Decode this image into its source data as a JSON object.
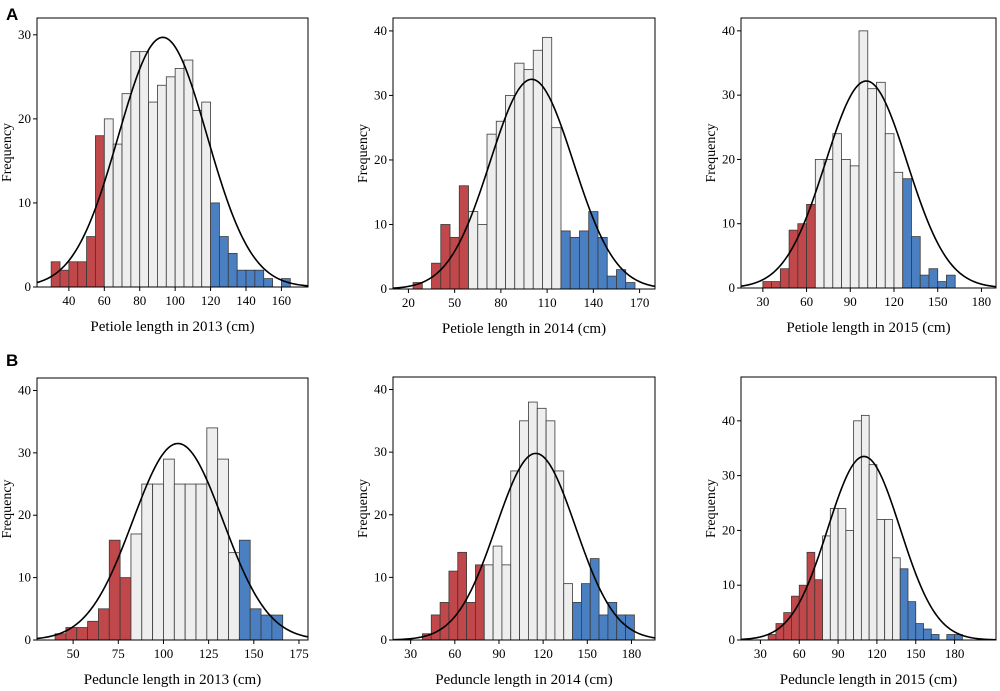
{
  "panels": [
    "A",
    "B"
  ],
  "colors": {
    "low": "#c0474a",
    "mid": "#eeeeee",
    "high": "#4a7fc1"
  },
  "chart_data": [
    {
      "type": "bar",
      "title": "",
      "xlabel": "Petiole length in 2013 (cm)",
      "ylabel": "Frequency",
      "xlim": [
        22,
        175
      ],
      "ylim": [
        0,
        32
      ],
      "xticks": [
        40,
        60,
        80,
        100,
        120,
        140,
        160
      ],
      "yticks": [
        0,
        10,
        20,
        30
      ],
      "bin_width": 5,
      "bins": [
        {
          "x": 30,
          "value": 3,
          "group": "low"
        },
        {
          "x": 35,
          "value": 2,
          "group": "low"
        },
        {
          "x": 40,
          "value": 3,
          "group": "low"
        },
        {
          "x": 45,
          "value": 3,
          "group": "low"
        },
        {
          "x": 50,
          "value": 6,
          "group": "low"
        },
        {
          "x": 55,
          "value": 18,
          "group": "low"
        },
        {
          "x": 60,
          "value": 20,
          "group": "mid"
        },
        {
          "x": 65,
          "value": 17,
          "group": "mid"
        },
        {
          "x": 70,
          "value": 23,
          "group": "mid"
        },
        {
          "x": 75,
          "value": 28,
          "group": "mid"
        },
        {
          "x": 80,
          "value": 28,
          "group": "mid"
        },
        {
          "x": 85,
          "value": 22,
          "group": "mid"
        },
        {
          "x": 90,
          "value": 24,
          "group": "mid"
        },
        {
          "x": 95,
          "value": 25,
          "group": "mid"
        },
        {
          "x": 100,
          "value": 26,
          "group": "mid"
        },
        {
          "x": 105,
          "value": 27,
          "group": "mid"
        },
        {
          "x": 110,
          "value": 21,
          "group": "mid"
        },
        {
          "x": 115,
          "value": 22,
          "group": "mid"
        },
        {
          "x": 120,
          "value": 10,
          "group": "high"
        },
        {
          "x": 125,
          "value": 6,
          "group": "high"
        },
        {
          "x": 130,
          "value": 4,
          "group": "high"
        },
        {
          "x": 135,
          "value": 2,
          "group": "high"
        },
        {
          "x": 140,
          "value": 2,
          "group": "high"
        },
        {
          "x": 145,
          "value": 2,
          "group": "high"
        },
        {
          "x": 150,
          "value": 1,
          "group": "high"
        },
        {
          "x": 155,
          "value": 0,
          "group": "high"
        },
        {
          "x": 160,
          "value": 1,
          "group": "high"
        }
      ],
      "normal_curve": {
        "mean": 93,
        "sd": 25,
        "peak": 29.7
      }
    },
    {
      "type": "bar",
      "title": "",
      "xlabel": "Petiole length in 2014 (cm)",
      "ylabel": "Frequency",
      "xlim": [
        10,
        180
      ],
      "ylim": [
        0,
        42
      ],
      "xticks": [
        20,
        50,
        80,
        110,
        140,
        170
      ],
      "yticks": [
        0,
        10,
        20,
        30,
        40
      ],
      "bin_width": 6,
      "bins": [
        {
          "x": 23,
          "value": 1,
          "group": "low"
        },
        {
          "x": 29,
          "value": 0,
          "group": "low"
        },
        {
          "x": 35,
          "value": 4,
          "group": "low"
        },
        {
          "x": 41,
          "value": 10,
          "group": "low"
        },
        {
          "x": 47,
          "value": 8,
          "group": "low"
        },
        {
          "x": 53,
          "value": 16,
          "group": "low"
        },
        {
          "x": 59,
          "value": 12,
          "group": "mid"
        },
        {
          "x": 65,
          "value": 10,
          "group": "mid"
        },
        {
          "x": 71,
          "value": 24,
          "group": "mid"
        },
        {
          "x": 77,
          "value": 26,
          "group": "mid"
        },
        {
          "x": 83,
          "value": 30,
          "group": "mid"
        },
        {
          "x": 89,
          "value": 35,
          "group": "mid"
        },
        {
          "x": 95,
          "value": 34,
          "group": "mid"
        },
        {
          "x": 101,
          "value": 37,
          "group": "mid"
        },
        {
          "x": 107,
          "value": 39,
          "group": "mid"
        },
        {
          "x": 113,
          "value": 25,
          "group": "mid"
        },
        {
          "x": 119,
          "value": 9,
          "group": "high"
        },
        {
          "x": 125,
          "value": 8,
          "group": "high"
        },
        {
          "x": 131,
          "value": 9,
          "group": "high"
        },
        {
          "x": 137,
          "value": 12,
          "group": "high"
        },
        {
          "x": 143,
          "value": 8,
          "group": "high"
        },
        {
          "x": 149,
          "value": 2,
          "group": "high"
        },
        {
          "x": 155,
          "value": 3,
          "group": "high"
        },
        {
          "x": 161,
          "value": 1,
          "group": "high"
        }
      ],
      "normal_curve": {
        "mean": 100,
        "sd": 27,
        "peak": 32.5
      }
    },
    {
      "type": "bar",
      "title": "",
      "xlabel": "Petiole length in 2015 (cm)",
      "ylabel": "Frequency",
      "xlim": [
        15,
        190
      ],
      "ylim": [
        0,
        42
      ],
      "xticks": [
        30,
        60,
        90,
        120,
        150,
        180
      ],
      "yticks": [
        0,
        10,
        20,
        30,
        40
      ],
      "bin_width": 6,
      "bins": [
        {
          "x": 30,
          "value": 1,
          "group": "low"
        },
        {
          "x": 36,
          "value": 1,
          "group": "low"
        },
        {
          "x": 42,
          "value": 3,
          "group": "low"
        },
        {
          "x": 48,
          "value": 9,
          "group": "low"
        },
        {
          "x": 54,
          "value": 10,
          "group": "low"
        },
        {
          "x": 60,
          "value": 13,
          "group": "low"
        },
        {
          "x": 66,
          "value": 20,
          "group": "mid"
        },
        {
          "x": 72,
          "value": 20,
          "group": "mid"
        },
        {
          "x": 78,
          "value": 24,
          "group": "mid"
        },
        {
          "x": 84,
          "value": 20,
          "group": "mid"
        },
        {
          "x": 90,
          "value": 19,
          "group": "mid"
        },
        {
          "x": 96,
          "value": 40,
          "group": "mid"
        },
        {
          "x": 102,
          "value": 31,
          "group": "mid"
        },
        {
          "x": 108,
          "value": 32,
          "group": "mid"
        },
        {
          "x": 114,
          "value": 24,
          "group": "mid"
        },
        {
          "x": 120,
          "value": 18,
          "group": "mid"
        },
        {
          "x": 126,
          "value": 17,
          "group": "high"
        },
        {
          "x": 132,
          "value": 8,
          "group": "high"
        },
        {
          "x": 138,
          "value": 2,
          "group": "high"
        },
        {
          "x": 144,
          "value": 3,
          "group": "high"
        },
        {
          "x": 150,
          "value": 1,
          "group": "high"
        },
        {
          "x": 156,
          "value": 2,
          "group": "high"
        }
      ],
      "normal_curve": {
        "mean": 101,
        "sd": 28,
        "peak": 32.2
      }
    },
    {
      "type": "bar",
      "title": "",
      "xlabel": "Peduncle length in 2013 (cm)",
      "ylabel": "Frequency",
      "xlim": [
        30,
        180
      ],
      "ylim": [
        0,
        42
      ],
      "xticks": [
        50,
        75,
        100,
        125,
        150,
        175
      ],
      "yticks": [
        0,
        10,
        20,
        30,
        40
      ],
      "bin_width": 6,
      "bins": [
        {
          "x": 40,
          "value": 1,
          "group": "low"
        },
        {
          "x": 46,
          "value": 2,
          "group": "low"
        },
        {
          "x": 52,
          "value": 2,
          "group": "low"
        },
        {
          "x": 58,
          "value": 3,
          "group": "low"
        },
        {
          "x": 64,
          "value": 5,
          "group": "low"
        },
        {
          "x": 70,
          "value": 16,
          "group": "low"
        },
        {
          "x": 76,
          "value": 10,
          "group": "low"
        },
        {
          "x": 82,
          "value": 17,
          "group": "mid"
        },
        {
          "x": 88,
          "value": 25,
          "group": "mid"
        },
        {
          "x": 94,
          "value": 25,
          "group": "mid"
        },
        {
          "x": 100,
          "value": 29,
          "group": "mid"
        },
        {
          "x": 106,
          "value": 25,
          "group": "mid"
        },
        {
          "x": 112,
          "value": 25,
          "group": "mid"
        },
        {
          "x": 118,
          "value": 25,
          "group": "mid"
        },
        {
          "x": 124,
          "value": 34,
          "group": "mid"
        },
        {
          "x": 130,
          "value": 29,
          "group": "mid"
        },
        {
          "x": 136,
          "value": 14,
          "group": "mid"
        },
        {
          "x": 142,
          "value": 16,
          "group": "high"
        },
        {
          "x": 148,
          "value": 5,
          "group": "high"
        },
        {
          "x": 154,
          "value": 4,
          "group": "high"
        },
        {
          "x": 160,
          "value": 4,
          "group": "high"
        }
      ],
      "normal_curve": {
        "mean": 108,
        "sd": 25,
        "peak": 31.5
      }
    },
    {
      "type": "bar",
      "title": "",
      "xlabel": "Peduncle length in 2014 (cm)",
      "ylabel": "Frequency",
      "xlim": [
        18,
        196
      ],
      "ylim": [
        0,
        42
      ],
      "xticks": [
        30,
        60,
        90,
        120,
        150,
        180
      ],
      "yticks": [
        0,
        10,
        20,
        30,
        40
      ],
      "bin_width": 6,
      "bins": [
        {
          "x": 38,
          "value": 1,
          "group": "low"
        },
        {
          "x": 44,
          "value": 4,
          "group": "low"
        },
        {
          "x": 50,
          "value": 6,
          "group": "low"
        },
        {
          "x": 56,
          "value": 11,
          "group": "low"
        },
        {
          "x": 62,
          "value": 14,
          "group": "low"
        },
        {
          "x": 68,
          "value": 6,
          "group": "low"
        },
        {
          "x": 74,
          "value": 12,
          "group": "low"
        },
        {
          "x": 80,
          "value": 12,
          "group": "mid"
        },
        {
          "x": 86,
          "value": 15,
          "group": "mid"
        },
        {
          "x": 92,
          "value": 12,
          "group": "mid"
        },
        {
          "x": 98,
          "value": 27,
          "group": "mid"
        },
        {
          "x": 104,
          "value": 35,
          "group": "mid"
        },
        {
          "x": 110,
          "value": 38,
          "group": "mid"
        },
        {
          "x": 116,
          "value": 37,
          "group": "mid"
        },
        {
          "x": 122,
          "value": 35,
          "group": "mid"
        },
        {
          "x": 128,
          "value": 27,
          "group": "mid"
        },
        {
          "x": 134,
          "value": 9,
          "group": "mid"
        },
        {
          "x": 140,
          "value": 6,
          "group": "high"
        },
        {
          "x": 146,
          "value": 9,
          "group": "high"
        },
        {
          "x": 152,
          "value": 13,
          "group": "high"
        },
        {
          "x": 158,
          "value": 4,
          "group": "high"
        },
        {
          "x": 164,
          "value": 6,
          "group": "high"
        },
        {
          "x": 170,
          "value": 4,
          "group": "high"
        },
        {
          "x": 176,
          "value": 4,
          "group": "high"
        }
      ],
      "normal_curve": {
        "mean": 115,
        "sd": 27,
        "peak": 29.8
      }
    },
    {
      "type": "bar",
      "title": "",
      "xlabel": "Peduncle length in 2015 (cm)",
      "ylabel": "Frequency",
      "xlim": [
        15,
        212
      ],
      "ylim": [
        0,
        48
      ],
      "xticks": [
        30,
        60,
        90,
        120,
        150,
        180
      ],
      "yticks": [
        0,
        10,
        20,
        30,
        40
      ],
      "bin_width": 6,
      "bins": [
        {
          "x": 36,
          "value": 1,
          "group": "low"
        },
        {
          "x": 42,
          "value": 3,
          "group": "low"
        },
        {
          "x": 48,
          "value": 5,
          "group": "low"
        },
        {
          "x": 54,
          "value": 8,
          "group": "low"
        },
        {
          "x": 60,
          "value": 10,
          "group": "low"
        },
        {
          "x": 66,
          "value": 16,
          "group": "low"
        },
        {
          "x": 72,
          "value": 11,
          "group": "low"
        },
        {
          "x": 78,
          "value": 19,
          "group": "mid"
        },
        {
          "x": 84,
          "value": 24,
          "group": "mid"
        },
        {
          "x": 90,
          "value": 24,
          "group": "mid"
        },
        {
          "x": 96,
          "value": 20,
          "group": "mid"
        },
        {
          "x": 102,
          "value": 40,
          "group": "mid"
        },
        {
          "x": 108,
          "value": 41,
          "group": "mid"
        },
        {
          "x": 114,
          "value": 32,
          "group": "mid"
        },
        {
          "x": 120,
          "value": 22,
          "group": "mid"
        },
        {
          "x": 126,
          "value": 22,
          "group": "mid"
        },
        {
          "x": 132,
          "value": 15,
          "group": "mid"
        },
        {
          "x": 138,
          "value": 13,
          "group": "high"
        },
        {
          "x": 144,
          "value": 7,
          "group": "high"
        },
        {
          "x": 150,
          "value": 3,
          "group": "high"
        },
        {
          "x": 156,
          "value": 2,
          "group": "high"
        },
        {
          "x": 162,
          "value": 1,
          "group": "high"
        },
        {
          "x": 168,
          "value": 0,
          "group": "high"
        },
        {
          "x": 174,
          "value": 1,
          "group": "high"
        },
        {
          "x": 180,
          "value": 1,
          "group": "high"
        }
      ],
      "normal_curve": {
        "mean": 110,
        "sd": 28,
        "peak": 33.5
      }
    }
  ]
}
